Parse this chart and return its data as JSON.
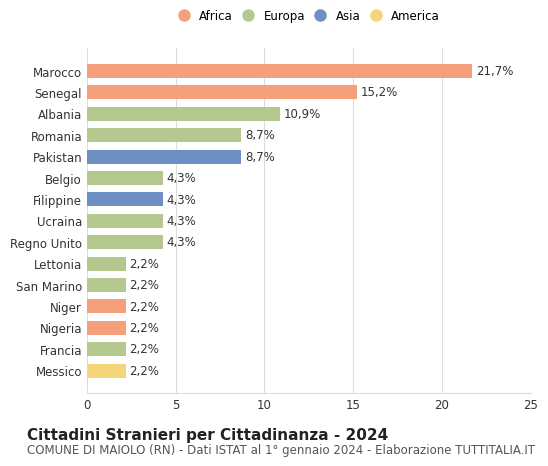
{
  "categories": [
    "Messico",
    "Francia",
    "Nigeria",
    "Niger",
    "San Marino",
    "Lettonia",
    "Regno Unito",
    "Ucraina",
    "Filippine",
    "Belgio",
    "Pakistan",
    "Romania",
    "Albania",
    "Senegal",
    "Marocco"
  ],
  "values": [
    2.2,
    2.2,
    2.2,
    2.2,
    2.2,
    2.2,
    4.3,
    4.3,
    4.3,
    4.3,
    8.7,
    8.7,
    10.9,
    15.2,
    21.7
  ],
  "colors": [
    "#f5d57a",
    "#b5c98e",
    "#f5a07a",
    "#f5a07a",
    "#b5c98e",
    "#b5c98e",
    "#b5c98e",
    "#b5c98e",
    "#6e8fc4",
    "#b5c98e",
    "#6e8fc4",
    "#b5c98e",
    "#b5c98e",
    "#f5a07a",
    "#f5a07a"
  ],
  "bar_labels": [
    "2,2%",
    "2,2%",
    "2,2%",
    "2,2%",
    "2,2%",
    "2,2%",
    "4,3%",
    "4,3%",
    "4,3%",
    "4,3%",
    "8,7%",
    "8,7%",
    "10,9%",
    "15,2%",
    "21,7%"
  ],
  "legend_labels": [
    "Africa",
    "Europa",
    "Asia",
    "America"
  ],
  "legend_colors": [
    "#f5a07a",
    "#b5c98e",
    "#6e8fc4",
    "#f5d57a"
  ],
  "title": "Cittadini Stranieri per Cittadinanza - 2024",
  "subtitle": "COMUNE DI MAIOLO (RN) - Dati ISTAT al 1° gennaio 2024 - Elaborazione TUTTITALIA.IT",
  "xlim": [
    0,
    25
  ],
  "xticks": [
    0,
    5,
    10,
    15,
    20,
    25
  ],
  "background_color": "#ffffff",
  "bar_height": 0.65,
  "grid_color": "#dddddd",
  "label_fontsize": 8.5,
  "tick_fontsize": 8.5,
  "title_fontsize": 11,
  "subtitle_fontsize": 8.5
}
